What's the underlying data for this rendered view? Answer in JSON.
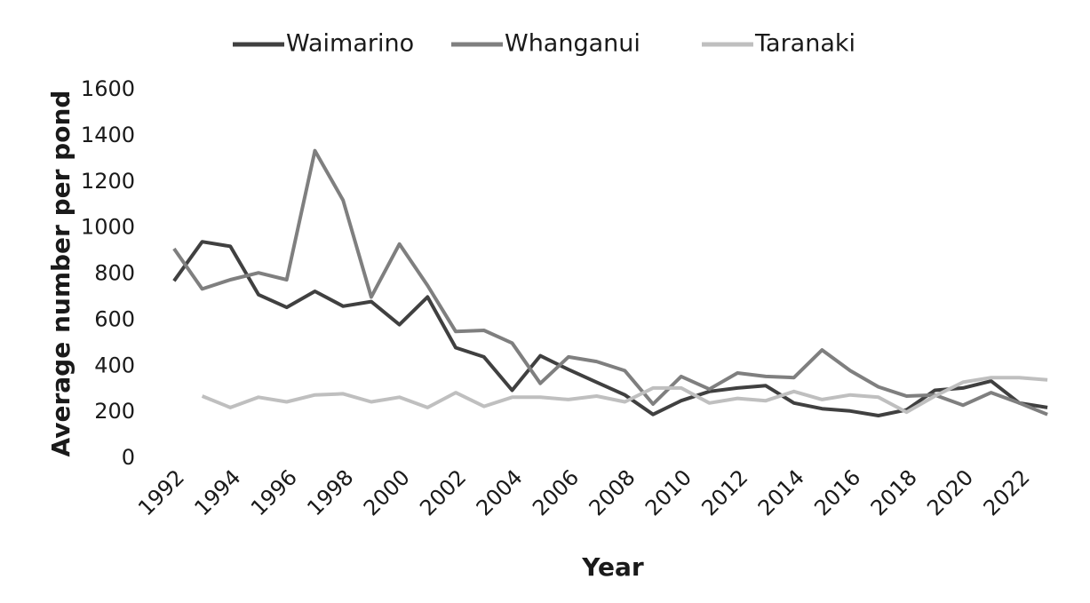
{
  "chart_data": {
    "type": "line",
    "xlabel": "Year",
    "ylabel": "Average number per pond",
    "categories": [
      "1992",
      null,
      "1994",
      null,
      "1996",
      null,
      "1998",
      null,
      "2000",
      null,
      "2002",
      null,
      "2004",
      null,
      "2006",
      null,
      "2008",
      null,
      "2010",
      null,
      "2012",
      null,
      "2014",
      null,
      "2016",
      null,
      "2018",
      null,
      "2020",
      null,
      "2022",
      null
    ],
    "series": [
      {
        "name": "Waimarino",
        "color": "#404040",
        "values": [
          770,
          940,
          920,
          710,
          655,
          725,
          660,
          680,
          580,
          700,
          480,
          440,
          295,
          445,
          385,
          330,
          275,
          190,
          250,
          290,
          305,
          315,
          240,
          215,
          205,
          185,
          210,
          295,
          305,
          335,
          240,
          220
        ]
      },
      {
        "name": "Whanganui",
        "color": "#7f7f7f",
        "values": [
          910,
          735,
          775,
          805,
          775,
          1335,
          1120,
          700,
          930,
          750,
          550,
          555,
          500,
          325,
          440,
          420,
          380,
          235,
          355,
          300,
          370,
          355,
          350,
          470,
          380,
          310,
          270,
          275,
          230,
          285,
          240,
          190
        ]
      },
      {
        "name": "Taranaki",
        "color": "#bfbfbf",
        "values": [
          null,
          270,
          220,
          265,
          245,
          275,
          280,
          245,
          265,
          220,
          285,
          225,
          265,
          265,
          255,
          270,
          245,
          305,
          305,
          240,
          260,
          250,
          290,
          255,
          275,
          265,
          200,
          270,
          330,
          350,
          350,
          340
        ]
      }
    ],
    "ylim": [
      0,
      1600
    ],
    "yticks": [
      0,
      200,
      400,
      600,
      800,
      1000,
      1200,
      1400,
      1600
    ],
    "legend": "top"
  }
}
